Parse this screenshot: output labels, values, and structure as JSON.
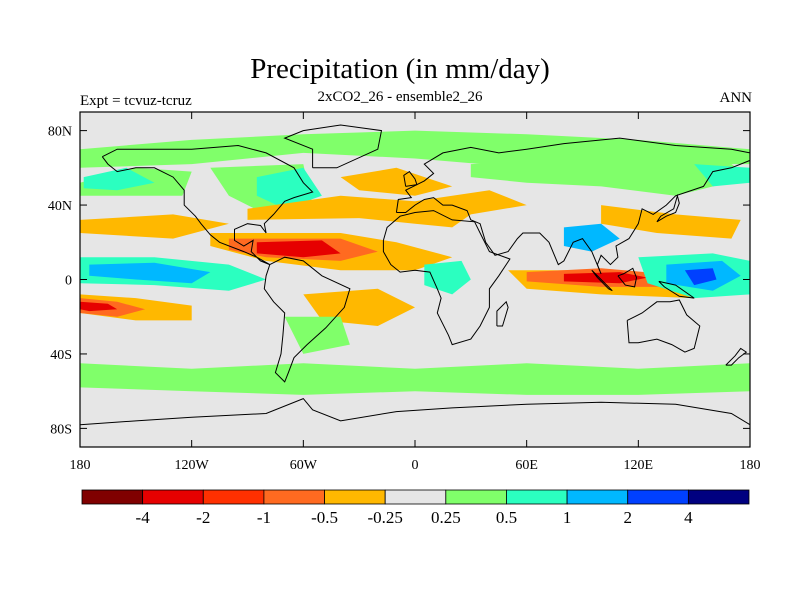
{
  "header": {
    "title": "Precipitation (in mm/day)",
    "subtitle": "2xCO2_26 - ensemble2_26",
    "left_label": "Expt = tcvuz-tcruz",
    "right_label": "ANN"
  },
  "map": {
    "projection": "cylindrical equidistant",
    "lon_range": [
      -180,
      180
    ],
    "lat_range": [
      -90,
      90
    ],
    "x_ticks": [
      {
        "lon": -180,
        "label": "180"
      },
      {
        "lon": -120,
        "label": "120W"
      },
      {
        "lon": -60,
        "label": "60W"
      },
      {
        "lon": 0,
        "label": "0"
      },
      {
        "lon": 60,
        "label": "60E"
      },
      {
        "lon": 120,
        "label": "120E"
      },
      {
        "lon": 180,
        "label": "180"
      }
    ],
    "y_ticks": [
      {
        "lat": 80,
        "label": "80N"
      },
      {
        "lat": 40,
        "label": "40N"
      },
      {
        "lat": 0,
        "label": "0"
      },
      {
        "lat": -40,
        "label": "40S"
      },
      {
        "lat": -80,
        "label": "80S"
      }
    ],
    "background_color": "#e6e6e6",
    "regions": [
      {
        "name": "arctic-moistening",
        "level": "0.25-0.5",
        "color": "#80ff6a",
        "points": [
          [
            -180,
            70
          ],
          [
            -120,
            75
          ],
          [
            -60,
            78
          ],
          [
            0,
            80
          ],
          [
            60,
            78
          ],
          [
            120,
            75
          ],
          [
            180,
            70
          ],
          [
            180,
            62
          ],
          [
            120,
            62
          ],
          [
            60,
            60
          ],
          [
            0,
            65
          ],
          [
            -60,
            68
          ],
          [
            -120,
            62
          ],
          [
            -180,
            60
          ]
        ]
      },
      {
        "name": "north-pacific-wet",
        "level": "0.25-0.5",
        "color": "#80ff6a",
        "points": [
          [
            -180,
            52
          ],
          [
            -150,
            60
          ],
          [
            -120,
            58
          ],
          [
            -125,
            45
          ],
          [
            -150,
            45
          ],
          [
            -180,
            45
          ]
        ]
      },
      {
        "name": "north-pacific-core",
        "level": "0.5-1",
        "color": "#2bffc0",
        "points": [
          [
            -178,
            55
          ],
          [
            -155,
            60
          ],
          [
            -140,
            52
          ],
          [
            -160,
            48
          ],
          [
            -178,
            49
          ]
        ]
      },
      {
        "name": "north-america-wet",
        "level": "0.25-0.5",
        "color": "#80ff6a",
        "points": [
          [
            -110,
            60
          ],
          [
            -60,
            62
          ],
          [
            -55,
            40
          ],
          [
            -80,
            35
          ],
          [
            -100,
            45
          ]
        ]
      },
      {
        "name": "north-atlantic-wet",
        "level": "0.5-1",
        "color": "#2bffc0",
        "points": [
          [
            -85,
            55
          ],
          [
            -60,
            60
          ],
          [
            -50,
            45
          ],
          [
            -70,
            38
          ],
          [
            -85,
            45
          ]
        ]
      },
      {
        "name": "eurasia-wet",
        "level": "0.25-0.5",
        "color": "#80ff6a",
        "points": [
          [
            30,
            62
          ],
          [
            100,
            65
          ],
          [
            170,
            62
          ],
          [
            180,
            55
          ],
          [
            140,
            45
          ],
          [
            100,
            50
          ],
          [
            60,
            52
          ],
          [
            30,
            55
          ]
        ]
      },
      {
        "name": "eurasia-core",
        "level": "0.5-1",
        "color": "#2bffc0",
        "points": [
          [
            150,
            62
          ],
          [
            180,
            60
          ],
          [
            180,
            52
          ],
          [
            160,
            50
          ]
        ]
      },
      {
        "name": "subtropical-north-pacific-dry",
        "level": "-0.25 to -0.5",
        "color": "#ffb800",
        "points": [
          [
            -180,
            32
          ],
          [
            -130,
            35
          ],
          [
            -100,
            30
          ],
          [
            -130,
            22
          ],
          [
            -180,
            25
          ]
        ]
      },
      {
        "name": "north-atlantic-dry",
        "level": "-0.25 to -0.5",
        "color": "#ffb800",
        "points": [
          [
            -90,
            32
          ],
          [
            -30,
            33
          ],
          [
            0,
            30
          ],
          [
            20,
            28
          ],
          [
            30,
            35
          ],
          [
            60,
            40
          ],
          [
            40,
            48
          ],
          [
            0,
            42
          ],
          [
            -40,
            45
          ],
          [
            -90,
            38
          ]
        ]
      },
      {
        "name": "mediterranean-dry",
        "level": "-0.25 to -0.5",
        "color": "#ffb800",
        "points": [
          [
            -40,
            55
          ],
          [
            -10,
            60
          ],
          [
            20,
            50
          ],
          [
            0,
            45
          ],
          [
            -30,
            48
          ]
        ]
      },
      {
        "name": "east-asia-dry",
        "level": "-0.25 to -0.5",
        "color": "#ffb800",
        "points": [
          [
            100,
            40
          ],
          [
            140,
            35
          ],
          [
            175,
            32
          ],
          [
            170,
            22
          ],
          [
            130,
            25
          ],
          [
            100,
            30
          ]
        ]
      },
      {
        "name": "tropical-atlantic-dry",
        "level": "-0.25 to -0.5",
        "color": "#ffb800",
        "points": [
          [
            -110,
            25
          ],
          [
            -40,
            25
          ],
          [
            -10,
            20
          ],
          [
            20,
            12
          ],
          [
            0,
            5
          ],
          [
            -40,
            5
          ],
          [
            -80,
            10
          ],
          [
            -110,
            18
          ]
        ]
      },
      {
        "name": "tropical-atlantic-core",
        "level": "-1 to -2",
        "color": "#ff6a20",
        "points": [
          [
            -100,
            22
          ],
          [
            -40,
            22
          ],
          [
            -20,
            15
          ],
          [
            -40,
            10
          ],
          [
            -80,
            12
          ],
          [
            -100,
            16
          ]
        ]
      },
      {
        "name": "tropical-atlantic-center",
        "level": "-2 to -4",
        "color": "#e60000",
        "points": [
          [
            -85,
            20
          ],
          [
            -50,
            21
          ],
          [
            -40,
            14
          ],
          [
            -60,
            12
          ],
          [
            -85,
            14
          ]
        ]
      },
      {
        "name": "equatorial-pacific-wet",
        "level": "0.5-1",
        "color": "#2bffc0",
        "points": [
          [
            -180,
            12
          ],
          [
            -140,
            12
          ],
          [
            -100,
            8
          ],
          [
            -80,
            0
          ],
          [
            -100,
            -6
          ],
          [
            -140,
            -3
          ],
          [
            -180,
            -2
          ]
        ]
      },
      {
        "name": "equatorial-pacific-core",
        "level": "1-2",
        "color": "#00b8ff",
        "points": [
          [
            -175,
            8
          ],
          [
            -140,
            9
          ],
          [
            -110,
            4
          ],
          [
            -120,
            -2
          ],
          [
            -150,
            0
          ],
          [
            -175,
            2
          ]
        ]
      },
      {
        "name": "south-pacific-dry",
        "level": "-0.25 to -0.5",
        "color": "#ffb800",
        "points": [
          [
            -180,
            -8
          ],
          [
            -150,
            -10
          ],
          [
            -120,
            -14
          ],
          [
            -120,
            -22
          ],
          [
            -150,
            -22
          ],
          [
            -180,
            -18
          ]
        ]
      },
      {
        "name": "south-pacific-dry-core",
        "level": "-1 to -2",
        "color": "#ff6a20",
        "points": [
          [
            -180,
            -10
          ],
          [
            -160,
            -12
          ],
          [
            -145,
            -16
          ],
          [
            -160,
            -20
          ],
          [
            -180,
            -18
          ]
        ]
      },
      {
        "name": "south-pacific-dry-center",
        "level": "-2 to -4",
        "color": "#e60000",
        "points": [
          [
            -180,
            -12
          ],
          [
            -165,
            -13
          ],
          [
            -160,
            -16
          ],
          [
            -175,
            -17
          ],
          [
            -180,
            -16
          ]
        ]
      },
      {
        "name": "south-atlantic-dry",
        "level": "-0.25 to -0.5",
        "color": "#ffb800",
        "points": [
          [
            -60,
            -8
          ],
          [
            -20,
            -5
          ],
          [
            0,
            -15
          ],
          [
            -20,
            -25
          ],
          [
            -50,
            -22
          ]
        ]
      },
      {
        "name": "south-america-wet",
        "level": "0.25-0.5",
        "color": "#80ff6a",
        "points": [
          [
            -70,
            -20
          ],
          [
            -40,
            -20
          ],
          [
            -35,
            -35
          ],
          [
            -60,
            -40
          ]
        ]
      },
      {
        "name": "indian-ocean-dry",
        "level": "-0.25 to -0.5",
        "color": "#ffb800",
        "points": [
          [
            50,
            5
          ],
          [
            100,
            5
          ],
          [
            130,
            0
          ],
          [
            160,
            5
          ],
          [
            175,
            -2
          ],
          [
            150,
            -10
          ],
          [
            100,
            -8
          ],
          [
            60,
            -5
          ]
        ]
      },
      {
        "name": "indian-ocean-core",
        "level": "-1 to -2",
        "color": "#ff6a20",
        "points": [
          [
            60,
            4
          ],
          [
            100,
            6
          ],
          [
            135,
            3
          ],
          [
            140,
            -4
          ],
          [
            100,
            -4
          ],
          [
            60,
            -1
          ]
        ]
      },
      {
        "name": "indian-ocean-center",
        "level": "-2 to -4",
        "color": "#e60000",
        "points": [
          [
            80,
            3
          ],
          [
            110,
            4
          ],
          [
            125,
            1
          ],
          [
            110,
            -2
          ],
          [
            80,
            -1
          ]
        ]
      },
      {
        "name": "west-pacific-wet",
        "level": "0.5-1",
        "color": "#2bffc0",
        "points": [
          [
            120,
            12
          ],
          [
            160,
            14
          ],
          [
            180,
            10
          ],
          [
            180,
            -8
          ],
          [
            150,
            -10
          ],
          [
            125,
            -2
          ]
        ]
      },
      {
        "name": "west-pacific-core",
        "level": "1-2",
        "color": "#00b8ff",
        "points": [
          [
            135,
            8
          ],
          [
            165,
            10
          ],
          [
            175,
            2
          ],
          [
            160,
            -6
          ],
          [
            135,
            -2
          ]
        ]
      },
      {
        "name": "west-pacific-center",
        "level": "2-4",
        "color": "#0040ff",
        "points": [
          [
            145,
            5
          ],
          [
            160,
            6
          ],
          [
            162,
            0
          ],
          [
            150,
            -3
          ]
        ]
      },
      {
        "name": "africa-wet",
        "level": "0.5-1",
        "color": "#2bffc0",
        "points": [
          [
            5,
            8
          ],
          [
            25,
            10
          ],
          [
            30,
            0
          ],
          [
            20,
            -8
          ],
          [
            5,
            -3
          ]
        ]
      },
      {
        "name": "indian-monsoon-wet",
        "level": "1-2",
        "color": "#00b8ff",
        "points": [
          [
            80,
            28
          ],
          [
            100,
            30
          ],
          [
            110,
            22
          ],
          [
            95,
            15
          ],
          [
            80,
            18
          ]
        ]
      },
      {
        "name": "southern-ocean-wet",
        "level": "0.25-0.5",
        "color": "#80ff6a",
        "points": [
          [
            -180,
            -45
          ],
          [
            -120,
            -48
          ],
          [
            -60,
            -45
          ],
          [
            0,
            -48
          ],
          [
            60,
            -45
          ],
          [
            120,
            -48
          ],
          [
            180,
            -45
          ],
          [
            180,
            -60
          ],
          [
            120,
            -62
          ],
          [
            60,
            -62
          ],
          [
            0,
            -60
          ],
          [
            -60,
            -62
          ],
          [
            -120,
            -60
          ],
          [
            -180,
            -58
          ]
        ]
      }
    ]
  },
  "colorbar": {
    "colors": [
      "#800000",
      "#e60000",
      "#ff3000",
      "#ff6a20",
      "#ffb800",
      "#e6e6e6",
      "#80ff6a",
      "#2bffc0",
      "#00b8ff",
      "#0040ff",
      "#000080"
    ],
    "labels": [
      "-4",
      "-2",
      "-1",
      "-0.5",
      "-0.25",
      "0.25",
      "0.5",
      "1",
      "2",
      "4"
    ]
  }
}
